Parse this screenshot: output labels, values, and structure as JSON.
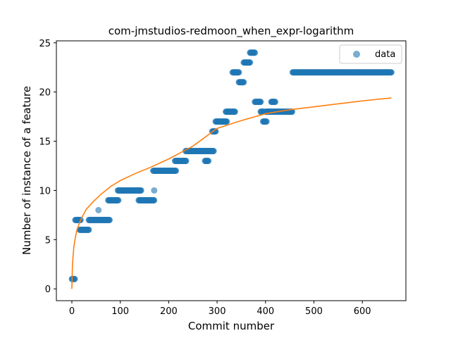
{
  "chart_data": {
    "type": "scatter",
    "title": "com-jmstudios-redmoon_when_expr-logarithm",
    "xlabel": "Commit number",
    "ylabel": "Number of instance of a feature",
    "xlim": [
      -32,
      690
    ],
    "ylim": [
      -1.2,
      25.2
    ],
    "xticks": [
      0,
      100,
      200,
      300,
      400,
      500,
      600
    ],
    "yticks": [
      0,
      5,
      10,
      15,
      20,
      25
    ],
    "grid": false,
    "legend": {
      "position": "top-right",
      "entries": [
        "data"
      ]
    },
    "colors": {
      "data": "#1f77b4",
      "fit": "#ff7f0e"
    },
    "series": [
      {
        "name": "data",
        "kind": "scatter",
        "segments": [
          {
            "x_start": 0,
            "x_end": 6,
            "y": 1
          },
          {
            "x_start": 7,
            "x_end": 18,
            "y": 7
          },
          {
            "x_start": 16,
            "x_end": 35,
            "y": 6
          },
          {
            "x_start": 35,
            "x_end": 78,
            "y": 7
          },
          {
            "x_start": 75,
            "x_end": 96,
            "y": 9
          },
          {
            "x_start": 95,
            "x_end": 143,
            "y": 10
          },
          {
            "x_start": 138,
            "x_end": 170,
            "y": 9
          },
          {
            "x_start": 168,
            "x_end": 215,
            "y": 12
          },
          {
            "x_start": 213,
            "x_end": 236,
            "y": 13
          },
          {
            "x_start": 235,
            "x_end": 293,
            "y": 14
          },
          {
            "x_start": 275,
            "x_end": 282,
            "y": 13
          },
          {
            "x_start": 290,
            "x_end": 297,
            "y": 16
          },
          {
            "x_start": 297,
            "x_end": 320,
            "y": 17
          },
          {
            "x_start": 318,
            "x_end": 337,
            "y": 18
          },
          {
            "x_start": 332,
            "x_end": 345,
            "y": 22
          },
          {
            "x_start": 345,
            "x_end": 355,
            "y": 21
          },
          {
            "x_start": 355,
            "x_end": 368,
            "y": 23
          },
          {
            "x_start": 368,
            "x_end": 378,
            "y": 24
          },
          {
            "x_start": 378,
            "x_end": 390,
            "y": 19
          },
          {
            "x_start": 390,
            "x_end": 396,
            "y": 18
          },
          {
            "x_start": 395,
            "x_end": 402,
            "y": 17
          },
          {
            "x_start": 400,
            "x_end": 455,
            "y": 18
          },
          {
            "x_start": 412,
            "x_end": 420,
            "y": 19
          },
          {
            "x_start": 456,
            "x_end": 660,
            "y": 22
          }
        ],
        "points": [
          {
            "x": 55,
            "y": 8
          },
          {
            "x": 170,
            "y": 10
          }
        ]
      },
      {
        "kind": "line",
        "fit": "logarithmic",
        "x": [
          0,
          1,
          2,
          4,
          6,
          10,
          15,
          20,
          30,
          45,
          60,
          80,
          100,
          130,
          160,
          200,
          250,
          300,
          350,
          400,
          450,
          500,
          550,
          600,
          660
        ],
        "y": [
          0,
          2.1,
          3.0,
          4.2,
          4.9,
          5.9,
          6.6,
          7.2,
          8.1,
          8.9,
          9.6,
          10.4,
          11.0,
          11.7,
          12.3,
          13.2,
          14.5,
          16.3,
          17.1,
          17.8,
          18.2,
          18.5,
          18.8,
          19.1,
          19.4
        ]
      }
    ]
  }
}
